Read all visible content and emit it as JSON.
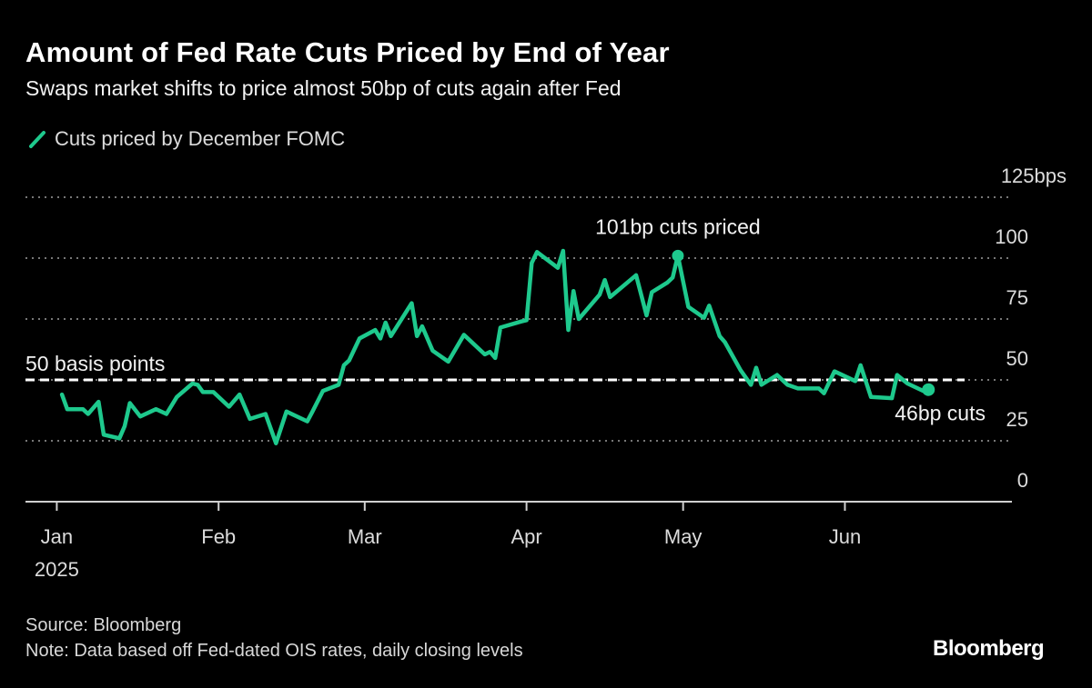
{
  "header": {
    "title": "Amount of Fed Rate Cuts Priced by End of Year",
    "subtitle": "Swaps market shifts to price almost 50bp of cuts again after Fed"
  },
  "footer": {
    "source": "Source: Bloomberg",
    "note": "Note: Data based off Fed-dated OIS rates, daily closing levels",
    "logo": "Bloomberg"
  },
  "colors": {
    "background": "#000000",
    "series": "#1ec98d",
    "reference_line": "#ffffff",
    "grid": "#777777"
  },
  "chart_data": {
    "type": "line",
    "title": "Amount of Fed Rate Cuts Priced by End of Year",
    "subtitle": "Swaps market shifts to price almost 50bp of cuts again after Fed",
    "legend": {
      "placement": "top-left",
      "entries": [
        "Cuts priced by December FOMC"
      ]
    },
    "grid": true,
    "xlim": [
      "2024-12-26",
      "2025-07-03"
    ],
    "ylim": [
      0,
      125
    ],
    "y_ticks": [
      {
        "value": 125,
        "label": "125bps"
      },
      {
        "value": 100,
        "label": "100"
      },
      {
        "value": 75,
        "label": "75"
      },
      {
        "value": 50,
        "label": "50"
      },
      {
        "value": 25,
        "label": "25"
      },
      {
        "value": 0,
        "label": "0"
      }
    ],
    "x_ticks": [
      {
        "date": "2025-01-01",
        "label": "Jan",
        "sublabel": "2025"
      },
      {
        "date": "2025-02-01",
        "label": "Feb"
      },
      {
        "date": "2025-03-01",
        "label": "Mar"
      },
      {
        "date": "2025-04-01",
        "label": "Apr"
      },
      {
        "date": "2025-05-01",
        "label": "May"
      },
      {
        "date": "2025-06-01",
        "label": "Jun"
      }
    ],
    "reference_line": {
      "value": 50,
      "label": "50 basis points"
    },
    "annotations": [
      {
        "date": "2025-04-30",
        "value": 101,
        "label": "101bp cuts priced"
      },
      {
        "date": "2025-06-17",
        "value": 46,
        "label": "46bp cuts"
      }
    ],
    "series": [
      {
        "name": "Cuts priced by December FOMC",
        "points": [
          [
            "2025-01-02",
            44
          ],
          [
            "2025-01-03",
            38
          ],
          [
            "2025-01-06",
            38
          ],
          [
            "2025-01-07",
            36
          ],
          [
            "2025-01-09",
            41
          ],
          [
            "2025-01-10",
            27.5
          ],
          [
            "2025-01-13",
            26
          ],
          [
            "2025-01-14",
            31
          ],
          [
            "2025-01-15",
            40.5
          ],
          [
            "2025-01-17",
            35
          ],
          [
            "2025-01-20",
            38
          ],
          [
            "2025-01-22",
            36
          ],
          [
            "2025-01-24",
            43
          ],
          [
            "2025-01-27",
            48.5
          ],
          [
            "2025-01-28",
            48
          ],
          [
            "2025-01-29",
            45
          ],
          [
            "2025-01-31",
            45
          ],
          [
            "2025-02-03",
            39
          ],
          [
            "2025-02-05",
            44
          ],
          [
            "2025-02-07",
            34
          ],
          [
            "2025-02-10",
            36
          ],
          [
            "2025-02-12",
            24
          ],
          [
            "2025-02-14",
            37
          ],
          [
            "2025-02-18",
            33
          ],
          [
            "2025-02-19",
            37
          ],
          [
            "2025-02-21",
            45.5
          ],
          [
            "2025-02-24",
            48
          ],
          [
            "2025-02-25",
            56
          ],
          [
            "2025-02-26",
            58
          ],
          [
            "2025-02-28",
            67
          ],
          [
            "2025-03-03",
            70.5
          ],
          [
            "2025-03-04",
            67
          ],
          [
            "2025-03-05",
            73.5
          ],
          [
            "2025-03-06",
            68
          ],
          [
            "2025-03-10",
            81.5
          ],
          [
            "2025-03-11",
            68
          ],
          [
            "2025-03-12",
            72
          ],
          [
            "2025-03-14",
            62
          ],
          [
            "2025-03-17",
            57.5
          ],
          [
            "2025-03-20",
            68.5
          ],
          [
            "2025-03-24",
            60.5
          ],
          [
            "2025-03-25",
            61.5
          ],
          [
            "2025-03-26",
            59
          ],
          [
            "2025-03-27",
            71.5
          ],
          [
            "2025-03-31",
            74
          ],
          [
            "2025-04-01",
            74.5
          ],
          [
            "2025-04-02",
            98
          ],
          [
            "2025-04-03",
            102.5
          ],
          [
            "2025-04-07",
            96
          ],
          [
            "2025-04-08",
            103
          ],
          [
            "2025-04-09",
            70.5
          ],
          [
            "2025-04-10",
            86.5
          ],
          [
            "2025-04-11",
            75
          ],
          [
            "2025-04-15",
            85
          ],
          [
            "2025-04-16",
            91
          ],
          [
            "2025-04-17",
            84
          ],
          [
            "2025-04-22",
            93
          ],
          [
            "2025-04-24",
            76.5
          ],
          [
            "2025-04-25",
            86
          ],
          [
            "2025-04-28",
            90
          ],
          [
            "2025-04-29",
            92
          ],
          [
            "2025-04-30",
            101
          ],
          [
            "2025-05-02",
            80
          ],
          [
            "2025-05-05",
            75.5
          ],
          [
            "2025-05-06",
            80.5
          ],
          [
            "2025-05-08",
            68
          ],
          [
            "2025-05-09",
            65.5
          ],
          [
            "2025-05-12",
            54
          ],
          [
            "2025-05-14",
            48
          ],
          [
            "2025-05-15",
            55
          ],
          [
            "2025-05-16",
            48
          ],
          [
            "2025-05-19",
            52
          ],
          [
            "2025-05-21",
            48
          ],
          [
            "2025-05-23",
            46.5
          ],
          [
            "2025-05-27",
            46.5
          ],
          [
            "2025-05-28",
            44.5
          ],
          [
            "2025-05-30",
            53.5
          ],
          [
            "2025-06-03",
            49.5
          ],
          [
            "2025-06-04",
            56
          ],
          [
            "2025-06-06",
            43
          ],
          [
            "2025-06-10",
            42.5
          ],
          [
            "2025-06-11",
            52
          ],
          [
            "2025-06-13",
            48.5
          ],
          [
            "2025-06-16",
            45.5
          ],
          [
            "2025-06-17",
            46
          ]
        ]
      }
    ]
  }
}
